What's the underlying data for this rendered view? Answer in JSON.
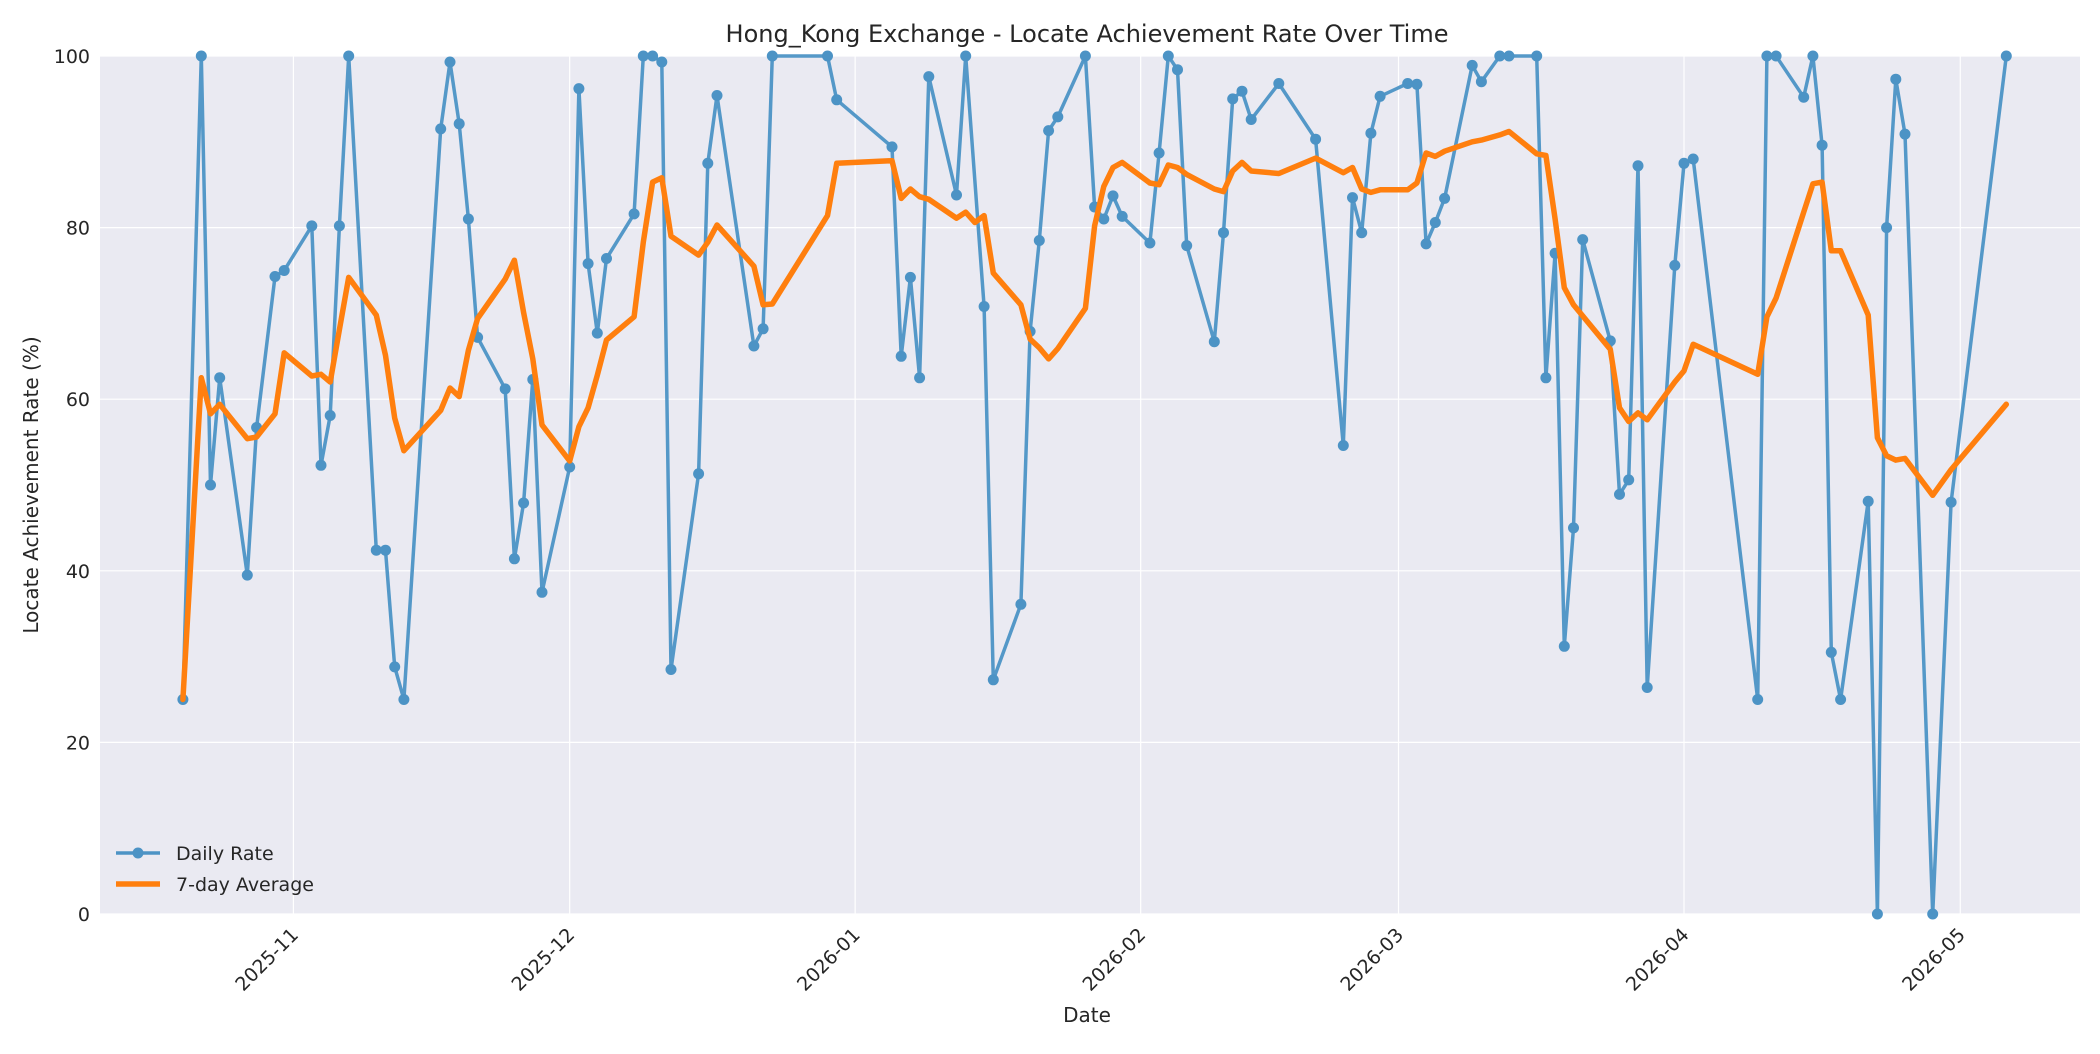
{
  "chart_data": {
    "type": "line",
    "title": "Hong_Kong Exchange - Locate Achievement Rate Over Time",
    "xlabel": "Date",
    "ylabel": "Locate Achievement Rate (%)",
    "ylim": [
      0,
      100
    ],
    "xlim": [
      "2025-10-11",
      "2026-05-14"
    ],
    "x_ticks": [
      "2025-11",
      "2025-12",
      "2026-01",
      "2026-02",
      "2026-03",
      "2026-04",
      "2026-05"
    ],
    "y_ticks": [
      0,
      20,
      40,
      60,
      80,
      100
    ],
    "grid": true,
    "legend_position": "lower-left",
    "colors": {
      "background": "#eaeaf2",
      "grid": "#ffffff",
      "daily": "#4c93c5",
      "average": "#ff7f0e"
    },
    "series": [
      {
        "name": "Daily Rate",
        "marker": "circle",
        "points": [
          [
            "2025-10-20",
            25.0
          ],
          [
            "2025-10-22",
            100.0
          ],
          [
            "2025-10-23",
            50.0
          ],
          [
            "2025-10-24",
            62.5
          ],
          [
            "2025-10-27",
            39.5
          ],
          [
            "2025-10-28",
            56.7
          ],
          [
            "2025-10-30",
            74.3
          ],
          [
            "2025-10-31",
            75.0
          ],
          [
            "2025-11-03",
            80.2
          ],
          [
            "2025-11-04",
            52.3
          ],
          [
            "2025-11-05",
            58.1
          ],
          [
            "2025-11-06",
            80.2
          ],
          [
            "2025-11-07",
            100.0
          ],
          [
            "2025-11-10",
            42.4
          ],
          [
            "2025-11-11",
            42.4
          ],
          [
            "2025-11-12",
            28.8
          ],
          [
            "2025-11-13",
            25.0
          ],
          [
            "2025-11-17",
            91.5
          ],
          [
            "2025-11-18",
            99.3
          ],
          [
            "2025-11-19",
            92.1
          ],
          [
            "2025-11-20",
            81.0
          ],
          [
            "2025-11-21",
            67.2
          ],
          [
            "2025-11-24",
            61.2
          ],
          [
            "2025-11-25",
            41.4
          ],
          [
            "2025-11-26",
            47.9
          ],
          [
            "2025-11-27",
            62.3
          ],
          [
            "2025-11-28",
            37.5
          ],
          [
            "2025-12-01",
            52.1
          ],
          [
            "2025-12-02",
            96.2
          ],
          [
            "2025-12-03",
            75.8
          ],
          [
            "2025-12-04",
            67.7
          ],
          [
            "2025-12-05",
            76.4
          ],
          [
            "2025-12-08",
            81.6
          ],
          [
            "2025-12-09",
            100.0
          ],
          [
            "2025-12-10",
            100.0
          ],
          [
            "2025-12-11",
            99.3
          ],
          [
            "2025-12-12",
            28.5
          ],
          [
            "2025-12-15",
            51.3
          ],
          [
            "2025-12-16",
            87.5
          ],
          [
            "2025-12-17",
            95.4
          ],
          [
            "2025-12-21",
            66.2
          ],
          [
            "2025-12-22",
            68.2
          ],
          [
            "2025-12-23",
            100.0
          ],
          [
            "2025-12-29",
            100.0
          ],
          [
            "2025-12-30",
            94.9
          ],
          [
            "2026-01-05",
            89.4
          ],
          [
            "2026-01-06",
            65.0
          ],
          [
            "2026-01-07",
            74.2
          ],
          [
            "2026-01-08",
            62.5
          ],
          [
            "2026-01-09",
            97.6
          ],
          [
            "2026-01-12",
            83.8
          ],
          [
            "2026-01-13",
            100.0
          ],
          [
            "2026-01-15",
            70.8
          ],
          [
            "2026-01-16",
            27.3
          ],
          [
            "2026-01-19",
            36.1
          ],
          [
            "2026-01-20",
            67.9
          ],
          [
            "2026-01-21",
            78.5
          ],
          [
            "2026-01-22",
            91.3
          ],
          [
            "2026-01-23",
            92.9
          ],
          [
            "2026-01-26",
            100.0
          ],
          [
            "2026-01-27",
            82.4
          ],
          [
            "2026-01-28",
            81.0
          ],
          [
            "2026-01-29",
            83.7
          ],
          [
            "2026-01-30",
            81.3
          ],
          [
            "2026-02-02",
            78.2
          ],
          [
            "2026-02-03",
            88.7
          ],
          [
            "2026-02-04",
            100.0
          ],
          [
            "2026-02-05",
            98.4
          ],
          [
            "2026-02-06",
            77.9
          ],
          [
            "2026-02-09",
            66.7
          ],
          [
            "2026-02-10",
            79.4
          ],
          [
            "2026-02-11",
            95.0
          ],
          [
            "2026-02-12",
            95.9
          ],
          [
            "2026-02-13",
            92.6
          ],
          [
            "2026-02-16",
            96.8
          ],
          [
            "2026-02-20",
            90.3
          ],
          [
            "2026-02-23",
            54.6
          ],
          [
            "2026-02-24",
            83.5
          ],
          [
            "2026-02-25",
            79.4
          ],
          [
            "2026-02-26",
            91.0
          ],
          [
            "2026-02-27",
            95.3
          ],
          [
            "2026-03-02",
            96.8
          ],
          [
            "2026-03-03",
            96.7
          ],
          [
            "2026-03-04",
            78.1
          ],
          [
            "2026-03-05",
            80.6
          ],
          [
            "2026-03-06",
            83.4
          ],
          [
            "2026-03-09",
            98.9
          ],
          [
            "2026-03-10",
            97.0
          ],
          [
            "2026-03-12",
            100.0
          ],
          [
            "2026-03-13",
            100.0
          ],
          [
            "2026-03-16",
            100.0
          ],
          [
            "2026-03-17",
            62.5
          ],
          [
            "2026-03-18",
            77.0
          ],
          [
            "2026-03-19",
            31.2
          ],
          [
            "2026-03-20",
            45.0
          ],
          [
            "2026-03-21",
            78.6
          ],
          [
            "2026-03-24",
            66.8
          ],
          [
            "2026-03-25",
            48.9
          ],
          [
            "2026-03-26",
            50.6
          ],
          [
            "2026-03-27",
            87.2
          ],
          [
            "2026-03-28",
            26.4
          ],
          [
            "2026-03-31",
            75.6
          ],
          [
            "2026-04-01",
            87.5
          ],
          [
            "2026-04-02",
            88.0
          ],
          [
            "2026-04-09",
            25.0
          ],
          [
            "2026-04-10",
            100.0
          ],
          [
            "2026-04-11",
            100.0
          ],
          [
            "2026-04-14",
            95.2
          ],
          [
            "2026-04-15",
            100.0
          ],
          [
            "2026-04-16",
            89.6
          ],
          [
            "2026-04-17",
            30.5
          ],
          [
            "2026-04-18",
            25.0
          ],
          [
            "2026-04-21",
            48.1
          ],
          [
            "2026-04-22",
            0.0
          ],
          [
            "2026-04-23",
            80.0
          ],
          [
            "2026-04-24",
            97.3
          ],
          [
            "2026-04-25",
            90.9
          ],
          [
            "2026-04-28",
            0.0
          ],
          [
            "2026-04-30",
            48.0
          ],
          [
            "2026-05-06",
            100.0
          ]
        ]
      },
      {
        "name": "7-day Average",
        "marker": "none",
        "points": [
          [
            "2025-10-20",
            25.0
          ],
          [
            "2025-10-22",
            62.5
          ],
          [
            "2025-10-23",
            58.3
          ],
          [
            "2025-10-24",
            59.4
          ],
          [
            "2025-10-27",
            55.4
          ],
          [
            "2025-10-28",
            55.6
          ],
          [
            "2025-10-30",
            58.3
          ],
          [
            "2025-10-31",
            65.4
          ],
          [
            "2025-11-03",
            62.7
          ],
          [
            "2025-11-04",
            62.9
          ],
          [
            "2025-11-05",
            62.0
          ],
          [
            "2025-11-06",
            68.1
          ],
          [
            "2025-11-07",
            74.2
          ],
          [
            "2025-11-10",
            69.8
          ],
          [
            "2025-11-11",
            65.1
          ],
          [
            "2025-11-12",
            57.8
          ],
          [
            "2025-11-13",
            54.0
          ],
          [
            "2025-11-17",
            58.7
          ],
          [
            "2025-11-18",
            61.3
          ],
          [
            "2025-11-19",
            60.3
          ],
          [
            "2025-11-20",
            65.7
          ],
          [
            "2025-11-21",
            69.4
          ],
          [
            "2025-11-24",
            74.0
          ],
          [
            "2025-11-25",
            76.2
          ],
          [
            "2025-11-26",
            70.1
          ],
          [
            "2025-11-27",
            64.7
          ],
          [
            "2025-11-28",
            57.0
          ],
          [
            "2025-12-01",
            52.8
          ],
          [
            "2025-12-02",
            56.8
          ],
          [
            "2025-12-03",
            59.0
          ],
          [
            "2025-12-04",
            62.8
          ],
          [
            "2025-12-05",
            66.9
          ],
          [
            "2025-12-08",
            69.6
          ],
          [
            "2025-12-09",
            78.3
          ],
          [
            "2025-12-10",
            85.3
          ],
          [
            "2025-12-11",
            85.8
          ],
          [
            "2025-12-12",
            79.0
          ],
          [
            "2025-12-15",
            76.8
          ],
          [
            "2025-12-16",
            78.3
          ],
          [
            "2025-12-17",
            80.3
          ],
          [
            "2025-12-21",
            75.5
          ],
          [
            "2025-12-22",
            71.0
          ],
          [
            "2025-12-23",
            71.1
          ],
          [
            "2025-12-29",
            81.4
          ],
          [
            "2025-12-30",
            87.5
          ],
          [
            "2026-01-05",
            87.8
          ],
          [
            "2026-01-06",
            83.4
          ],
          [
            "2026-01-07",
            84.5
          ],
          [
            "2026-01-08",
            83.6
          ],
          [
            "2026-01-09",
            83.3
          ],
          [
            "2026-01-12",
            81.1
          ],
          [
            "2026-01-13",
            81.8
          ],
          [
            "2026-01-14",
            80.6
          ],
          [
            "2026-01-15",
            81.4
          ],
          [
            "2026-01-16",
            74.7
          ],
          [
            "2026-01-19",
            71.0
          ],
          [
            "2026-01-20",
            67.0
          ],
          [
            "2026-01-21",
            66.0
          ],
          [
            "2026-01-22",
            64.7
          ],
          [
            "2026-01-23",
            65.9
          ],
          [
            "2026-01-26",
            70.6
          ],
          [
            "2026-01-27",
            80.2
          ],
          [
            "2026-01-28",
            84.8
          ],
          [
            "2026-01-29",
            87.0
          ],
          [
            "2026-01-30",
            87.6
          ],
          [
            "2026-02-02",
            85.2
          ],
          [
            "2026-02-03",
            85.0
          ],
          [
            "2026-02-04",
            87.3
          ],
          [
            "2026-02-05",
            87.0
          ],
          [
            "2026-02-06",
            86.2
          ],
          [
            "2026-02-09",
            84.5
          ],
          [
            "2026-02-10",
            84.2
          ],
          [
            "2026-02-11",
            86.6
          ],
          [
            "2026-02-12",
            87.6
          ],
          [
            "2026-02-13",
            86.6
          ],
          [
            "2026-02-16",
            86.3
          ],
          [
            "2026-02-20",
            88.1
          ],
          [
            "2026-02-23",
            86.4
          ],
          [
            "2026-02-24",
            87.0
          ],
          [
            "2026-02-25",
            84.5
          ],
          [
            "2026-02-26",
            84.1
          ],
          [
            "2026-02-27",
            84.4
          ],
          [
            "2026-03-02",
            84.4
          ],
          [
            "2026-03-03",
            85.2
          ],
          [
            "2026-03-04",
            88.7
          ],
          [
            "2026-03-05",
            88.3
          ],
          [
            "2026-03-06",
            88.9
          ],
          [
            "2026-03-09",
            90.0
          ],
          [
            "2026-03-10",
            90.2
          ],
          [
            "2026-03-12",
            90.8
          ],
          [
            "2026-03-13",
            91.2
          ],
          [
            "2026-03-16",
            88.6
          ],
          [
            "2026-03-17",
            88.4
          ],
          [
            "2026-03-18",
            81.0
          ],
          [
            "2026-03-19",
            73.0
          ],
          [
            "2026-03-20",
            71.0
          ],
          [
            "2026-03-24",
            65.8
          ],
          [
            "2026-03-25",
            59.0
          ],
          [
            "2026-03-26",
            57.4
          ],
          [
            "2026-03-27",
            58.4
          ],
          [
            "2026-03-28",
            57.6
          ],
          [
            "2026-03-31",
            62.0
          ],
          [
            "2026-04-01",
            63.3
          ],
          [
            "2026-04-02",
            66.4
          ],
          [
            "2026-04-09",
            62.9
          ],
          [
            "2026-04-10",
            69.6
          ],
          [
            "2026-04-11",
            71.8
          ],
          [
            "2026-04-14",
            81.8
          ],
          [
            "2026-04-15",
            85.1
          ],
          [
            "2026-04-16",
            85.3
          ],
          [
            "2026-04-17",
            77.3
          ],
          [
            "2026-04-18",
            77.3
          ],
          [
            "2026-04-21",
            69.8
          ],
          [
            "2026-04-22",
            55.5
          ],
          [
            "2026-04-23",
            53.4
          ],
          [
            "2026-04-24",
            52.9
          ],
          [
            "2026-04-25",
            53.1
          ],
          [
            "2026-04-28",
            48.8
          ],
          [
            "2026-04-30",
            51.8
          ],
          [
            "2026-05-06",
            59.4
          ]
        ]
      }
    ]
  }
}
